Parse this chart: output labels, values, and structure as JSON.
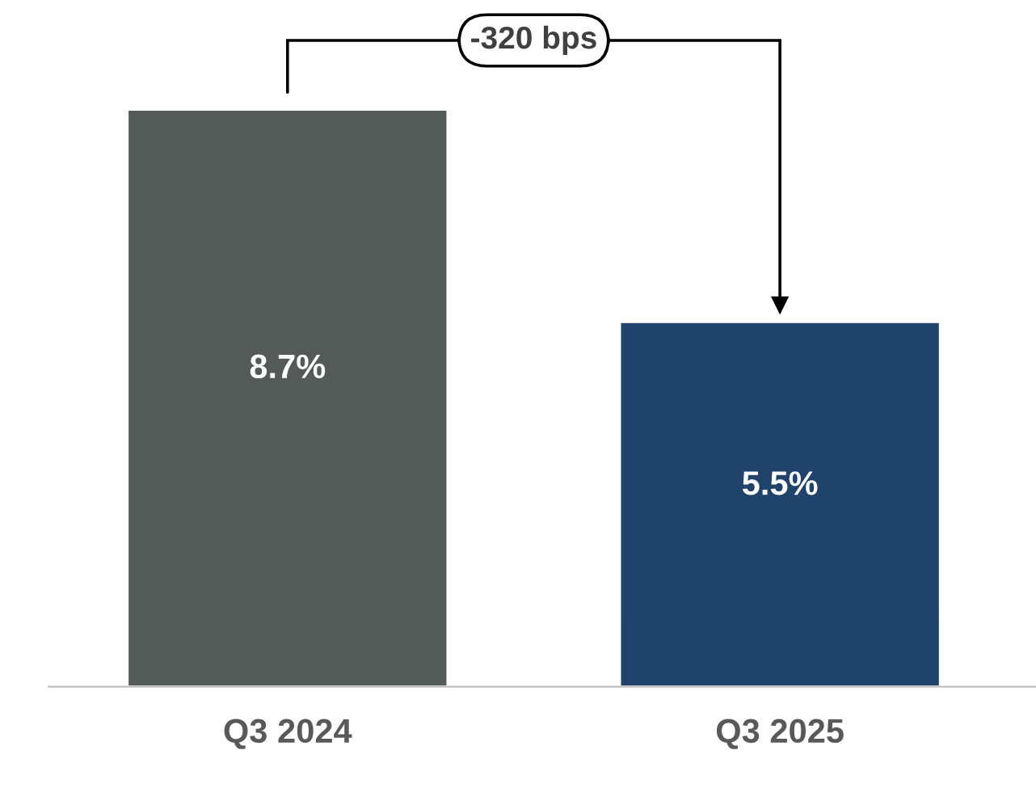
{
  "chart_data": {
    "type": "bar",
    "categories": [
      "Q3 2024",
      "Q3 2025"
    ],
    "values": [
      8.7,
      5.5
    ],
    "colors": [
      "#545a58",
      "#1f436a"
    ],
    "value_labels": [
      "8.7%",
      "5.5%"
    ],
    "annotations": [
      "-320 bps"
    ]
  }
}
